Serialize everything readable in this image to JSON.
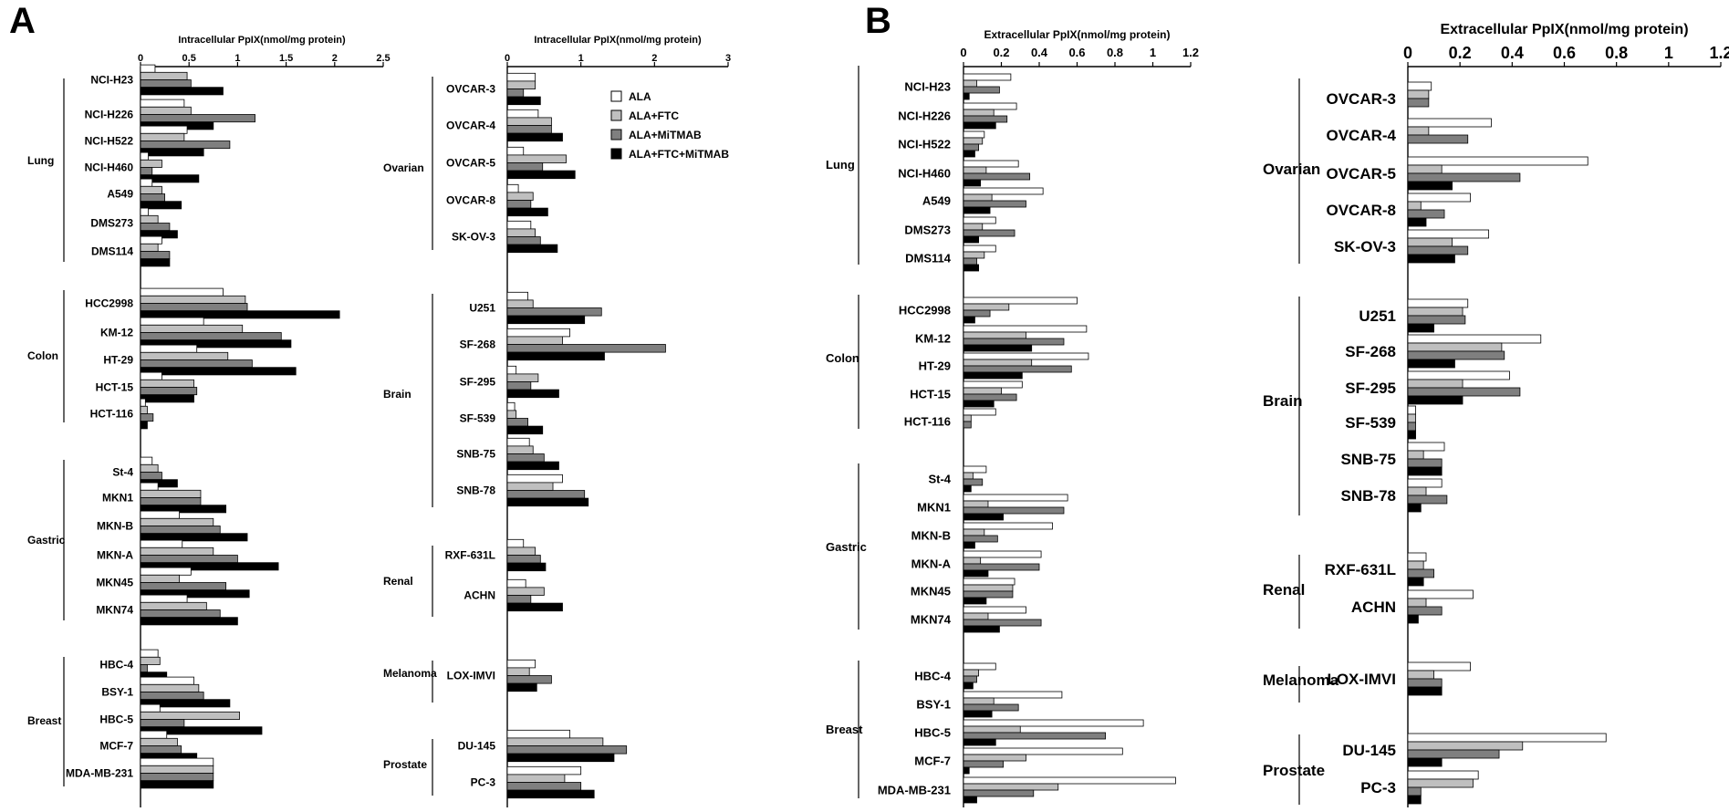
{
  "panels": [
    {
      "letter": "A"
    },
    {
      "letter": "B"
    }
  ],
  "series_colors": [
    "#ffffff",
    "#bfbfbf",
    "#7f7f7f",
    "#000000"
  ],
  "chart_data": [
    {
      "type": "bar",
      "orientation": "horizontal",
      "title": "Intracellular PpIX(nmol/mg protein)",
      "xlim": [
        0,
        2.5
      ],
      "xticks": [
        "0",
        "0.5",
        "1",
        "1.5",
        "2",
        "2.5"
      ],
      "xtick_values": [
        0,
        0.5,
        1,
        1.5,
        2,
        2.5
      ],
      "groups": [
        {
          "name": "Lung",
          "categories": [
            "NCI-H23",
            "NCI-H226",
            "NCI-H522",
            "NCI-H460",
            "A549",
            "DMS273",
            "DMS114"
          ]
        },
        {
          "name": "Colon",
          "categories": [
            "HCC2998",
            "KM-12",
            "HT-29",
            "HCT-15",
            "HCT-116"
          ]
        },
        {
          "name": "Gastric",
          "categories": [
            "St-4",
            "MKN1",
            "MKN-B",
            "MKN-A",
            "MKN45",
            "MKN74"
          ]
        },
        {
          "name": "Breast",
          "categories": [
            "HBC-4",
            "BSY-1",
            "HBC-5",
            "MCF-7",
            "MDA-MB-231"
          ]
        }
      ],
      "series": [
        {
          "name": "ALA",
          "values": [
            0.15,
            0.45,
            0.48,
            0.08,
            0.12,
            0.08,
            0.22,
            0.85,
            0.65,
            0.58,
            0.22,
            0.05,
            0.12,
            0.18,
            0.4,
            0.43,
            0.52,
            0.48
          ]
        },
        {
          "name": "ALA+FTC",
          "values": [
            0.48,
            0.52,
            0.45,
            0.22,
            0.22,
            0.18,
            0.18,
            1.08,
            1.05,
            0.9,
            0.55,
            0.07,
            0.18,
            0.62,
            0.75,
            0.75,
            0.4,
            0.68
          ]
        },
        {
          "name": "ALA+MiTMAB",
          "values": [
            0.52,
            1.18,
            0.92,
            0.12,
            0.25,
            0.3,
            0.3,
            1.1,
            1.45,
            1.15,
            0.58,
            0.13,
            0.22,
            0.62,
            0.82,
            1.0,
            0.88,
            0.82
          ]
        },
        {
          "name": "ALA+FTC+MiTMAB",
          "values": [
            0.85,
            0.75,
            0.65,
            0.6,
            0.42,
            0.38,
            0.3,
            2.05,
            1.55,
            1.6,
            0.55,
            0.07,
            0.38,
            0.88,
            1.1,
            1.42,
            1.12,
            1.0
          ]
        }
      ],
      "series_breast": [
        [
          0.18,
          0.55,
          0.2,
          0.27,
          0.75
        ],
        [
          0.2,
          0.6,
          1.02,
          0.38,
          0.75
        ],
        [
          0.07,
          0.65,
          0.45,
          0.42,
          0.75
        ],
        [
          0.27,
          0.92,
          1.25,
          0.58,
          0.75
        ]
      ]
    },
    {
      "type": "bar",
      "orientation": "horizontal",
      "title": "Intracellular PpIX(nmol/mg protein)",
      "xlim": [
        0,
        3
      ],
      "xticks": [
        "0",
        "1",
        "2",
        "3"
      ],
      "xtick_values": [
        0,
        1,
        2,
        3
      ],
      "legend": {
        "placement": "top-right",
        "entries": [
          "ALA",
          "ALA+FTC",
          "ALA+MiTMAB",
          "ALA+FTC+MiTMAB"
        ]
      },
      "groups": [
        {
          "name": "Ovarian",
          "categories": [
            "OVCAR-3",
            "OVCAR-4",
            "OVCAR-5",
            "OVCAR-8",
            "SK-OV-3"
          ]
        },
        {
          "name": "Brain",
          "categories": [
            "U251",
            "SF-268",
            "SF-295",
            "SF-539",
            "SNB-75",
            "SNB-78"
          ]
        },
        {
          "name": "Renal",
          "categories": [
            "RXF-631L",
            "ACHN"
          ]
        },
        {
          "name": "Melanoma",
          "categories": [
            "LOX-IMVI"
          ]
        },
        {
          "name": "Prostate",
          "categories": [
            "DU-145",
            "PC-3"
          ]
        }
      ],
      "series": [
        {
          "name": "ALA",
          "values": [
            0.38,
            0.42,
            0.22,
            0.15,
            0.32,
            0.28,
            0.85,
            0.12,
            0.1,
            0.3,
            0.75,
            0.22,
            0.25,
            0.38,
            0.85,
            1.0
          ]
        },
        {
          "name": "ALA+FTC",
          "values": [
            0.38,
            0.6,
            0.8,
            0.35,
            0.38,
            0.35,
            0.75,
            0.42,
            0.12,
            0.35,
            0.62,
            0.38,
            0.5,
            0.3,
            1.3,
            0.78
          ]
        },
        {
          "name": "ALA+MiTMAB",
          "values": [
            0.22,
            0.6,
            0.48,
            0.32,
            0.45,
            1.28,
            2.15,
            0.32,
            0.28,
            0.5,
            1.05,
            0.45,
            0.32,
            0.6,
            1.62,
            1.0
          ]
        },
        {
          "name": "ALA+FTC+MiTMAB",
          "values": [
            0.45,
            0.75,
            0.92,
            0.55,
            0.68,
            1.05,
            1.32,
            0.7,
            0.48,
            0.7,
            1.1,
            0.52,
            0.75,
            0.4,
            1.45,
            1.18
          ]
        }
      ]
    },
    {
      "type": "bar",
      "orientation": "horizontal",
      "title": "Extracellular PpIX(nmol/mg protein)",
      "xlim": [
        0,
        1.2
      ],
      "xticks": [
        "0",
        "0.2",
        "0.4",
        "0.6",
        "0.8",
        "1",
        "1.2"
      ],
      "xtick_values": [
        0,
        0.2,
        0.4,
        0.6,
        0.8,
        1,
        1.2
      ],
      "groups": [
        {
          "name": "Lung",
          "categories": [
            "NCI-H23",
            "NCI-H226",
            "NCI-H522",
            "NCI-H460",
            "A549",
            "DMS273",
            "DMS114"
          ]
        },
        {
          "name": "Colon",
          "categories": [
            "HCC2998",
            "KM-12",
            "HT-29",
            "HCT-15",
            "HCT-116"
          ]
        },
        {
          "name": "Gastric",
          "categories": [
            "St-4",
            "MKN1",
            "MKN-B",
            "MKN-A",
            "MKN45",
            "MKN74"
          ]
        },
        {
          "name": "Breast",
          "categories": [
            "HBC-4",
            "BSY-1",
            "HBC-5",
            "MCF-7",
            "MDA-MB-231"
          ]
        }
      ],
      "series": [
        {
          "name": "ALA",
          "values": [
            0.25,
            0.28,
            0.11,
            0.29,
            0.42,
            0.17,
            0.17,
            0.6,
            0.65,
            0.66,
            0.31,
            0.17,
            0.12,
            0.55,
            0.47,
            0.41,
            0.27,
            0.33,
            0.17,
            0.52,
            0.95,
            0.84,
            1.12
          ]
        },
        {
          "name": "ALA+FTC",
          "values": [
            0.07,
            0.16,
            0.1,
            0.12,
            0.15,
            0.1,
            0.11,
            0.24,
            0.33,
            0.36,
            0.2,
            0.04,
            0.05,
            0.13,
            0.11,
            0.09,
            0.26,
            0.13,
            0.08,
            0.16,
            0.3,
            0.33,
            0.5
          ]
        },
        {
          "name": "ALA+MiTMAB",
          "values": [
            0.19,
            0.23,
            0.08,
            0.35,
            0.33,
            0.27,
            0.07,
            0.14,
            0.53,
            0.57,
            0.28,
            0.04,
            0.1,
            0.53,
            0.18,
            0.4,
            0.26,
            0.41,
            0.07,
            0.29,
            0.75,
            0.21,
            0.37
          ]
        },
        {
          "name": "ALA+FTC+MiTMAB",
          "values": [
            0.03,
            0.17,
            0.06,
            0.09,
            0.14,
            0.08,
            0.08,
            0.06,
            0.36,
            0.31,
            0.16,
            0.0,
            0.04,
            0.21,
            0.06,
            0.13,
            0.12,
            0.19,
            0.05,
            0.15,
            0.17,
            0.03,
            0.07
          ]
        }
      ]
    },
    {
      "type": "bar",
      "orientation": "horizontal",
      "title": "Extracellular PpIX(nmol/mg protein)",
      "xlim": [
        0,
        1.2
      ],
      "xticks": [
        "0",
        "0.2",
        "0.4",
        "0.6",
        "0.8",
        "1",
        "1.2"
      ],
      "xtick_values": [
        0,
        0.2,
        0.4,
        0.6,
        0.8,
        1,
        1.2
      ],
      "groups": [
        {
          "name": "Ovarian",
          "categories": [
            "OVCAR-3",
            "OVCAR-4",
            "OVCAR-5",
            "OVCAR-8",
            "SK-OV-3"
          ]
        },
        {
          "name": "Brain",
          "categories": [
            "U251",
            "SF-268",
            "SF-295",
            "SF-539",
            "SNB-75",
            "SNB-78"
          ]
        },
        {
          "name": "Renal",
          "categories": [
            "RXF-631L",
            "ACHN"
          ]
        },
        {
          "name": "Melanoma",
          "categories": [
            "LOX-IMVI"
          ]
        },
        {
          "name": "Prostate",
          "categories": [
            "DU-145",
            "PC-3"
          ]
        }
      ],
      "series": [
        {
          "name": "ALA",
          "values": [
            0.09,
            0.32,
            0.69,
            0.24,
            0.31,
            0.23,
            0.51,
            0.39,
            0.03,
            0.14,
            0.13,
            0.07,
            0.25,
            0.24,
            0.76,
            0.27
          ]
        },
        {
          "name": "ALA+FTC",
          "values": [
            0.08,
            0.08,
            0.13,
            0.05,
            0.17,
            0.21,
            0.36,
            0.21,
            0.03,
            0.06,
            0.07,
            0.06,
            0.07,
            0.1,
            0.44,
            0.25
          ]
        },
        {
          "name": "ALA+MiTMAB",
          "values": [
            0.08,
            0.23,
            0.43,
            0.14,
            0.23,
            0.22,
            0.37,
            0.43,
            0.03,
            0.13,
            0.15,
            0.1,
            0.13,
            0.13,
            0.35,
            0.05
          ]
        },
        {
          "name": "ALA+FTC+MiTMAB",
          "values": [
            0.0,
            0.0,
            0.17,
            0.07,
            0.18,
            0.1,
            0.18,
            0.21,
            0.03,
            0.13,
            0.05,
            0.06,
            0.04,
            0.13,
            0.13,
            0.05
          ]
        }
      ]
    }
  ]
}
